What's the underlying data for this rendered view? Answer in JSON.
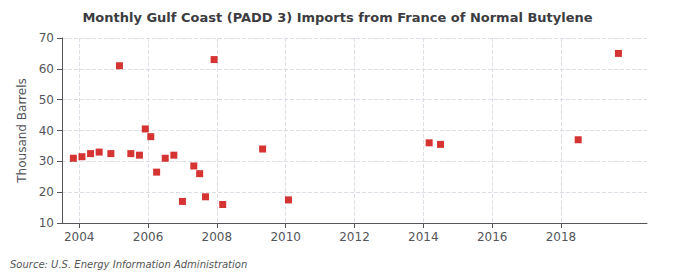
{
  "chart_data": {
    "type": "scatter",
    "title": "Monthly Gulf Coast (PADD 3) Imports from France of Normal Butylene",
    "ylabel": "Thousand Barrels",
    "annotation": "Source: U.S. Energy Information Administration",
    "x": [
      2003.83,
      2004.08,
      2004.33,
      2004.58,
      2004.92,
      2005.17,
      2005.5,
      2005.75,
      2005.92,
      2006.08,
      2006.25,
      2006.5,
      2006.75,
      2007.0,
      2007.33,
      2007.5,
      2007.67,
      2007.92,
      2008.17,
      2009.33,
      2010.08,
      2014.17,
      2014.5,
      2018.5,
      2019.67
    ],
    "values": [
      31.0,
      31.5,
      32.5,
      33.0,
      32.5,
      61.0,
      32.5,
      32.0,
      40.5,
      38.0,
      26.5,
      31.0,
      32.0,
      17.0,
      28.5,
      26.0,
      18.5,
      63.0,
      16.0,
      34.0,
      17.5,
      36.0,
      35.5,
      37.0,
      65.0
    ],
    "color": "#cc0000",
    "marker": "square",
    "xlim": [
      2003.5,
      2020.5
    ],
    "xticks": [
      2004,
      2006,
      2008,
      2010,
      2012,
      2014,
      2016,
      2018
    ],
    "ylim": [
      10,
      70
    ],
    "yticks": [
      10,
      20,
      30,
      40,
      50,
      60,
      70
    ],
    "grid": true
  }
}
